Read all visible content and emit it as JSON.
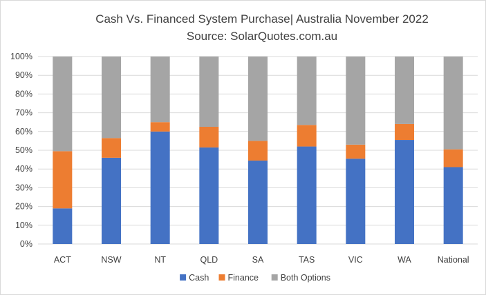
{
  "chart_data": {
    "type": "bar",
    "stacked": true,
    "title": "Cash Vs. Financed System Purchase|  Australia November  2022",
    "subtitle": "Source: SolarQuotes.com.au",
    "categories": [
      "ACT",
      "NSW",
      "NT",
      "QLD",
      "SA",
      "TAS",
      "VIC",
      "WA",
      "National"
    ],
    "series": [
      {
        "name": "Cash",
        "color": "#4472C4",
        "values": [
          19,
          46,
          60,
          51.5,
          44.5,
          52,
          45.5,
          55.5,
          41
        ]
      },
      {
        "name": "Finance",
        "color": "#ED7D31",
        "values": [
          30.5,
          10.5,
          5,
          11,
          10.5,
          11.5,
          7.5,
          8.5,
          9.5
        ]
      },
      {
        "name": "Both Options",
        "color": "#A5A5A5",
        "values": [
          50.5,
          43.5,
          35,
          37.5,
          45,
          36.5,
          47,
          36,
          49.5
        ]
      }
    ],
    "ylim": [
      0,
      100
    ],
    "y_ticks": [
      "0%",
      "10%",
      "20%",
      "30%",
      "40%",
      "50%",
      "60%",
      "70%",
      "80%",
      "90%",
      "100%"
    ],
    "xlabel": "",
    "ylabel": "",
    "grid": true,
    "legend": "bottom"
  }
}
